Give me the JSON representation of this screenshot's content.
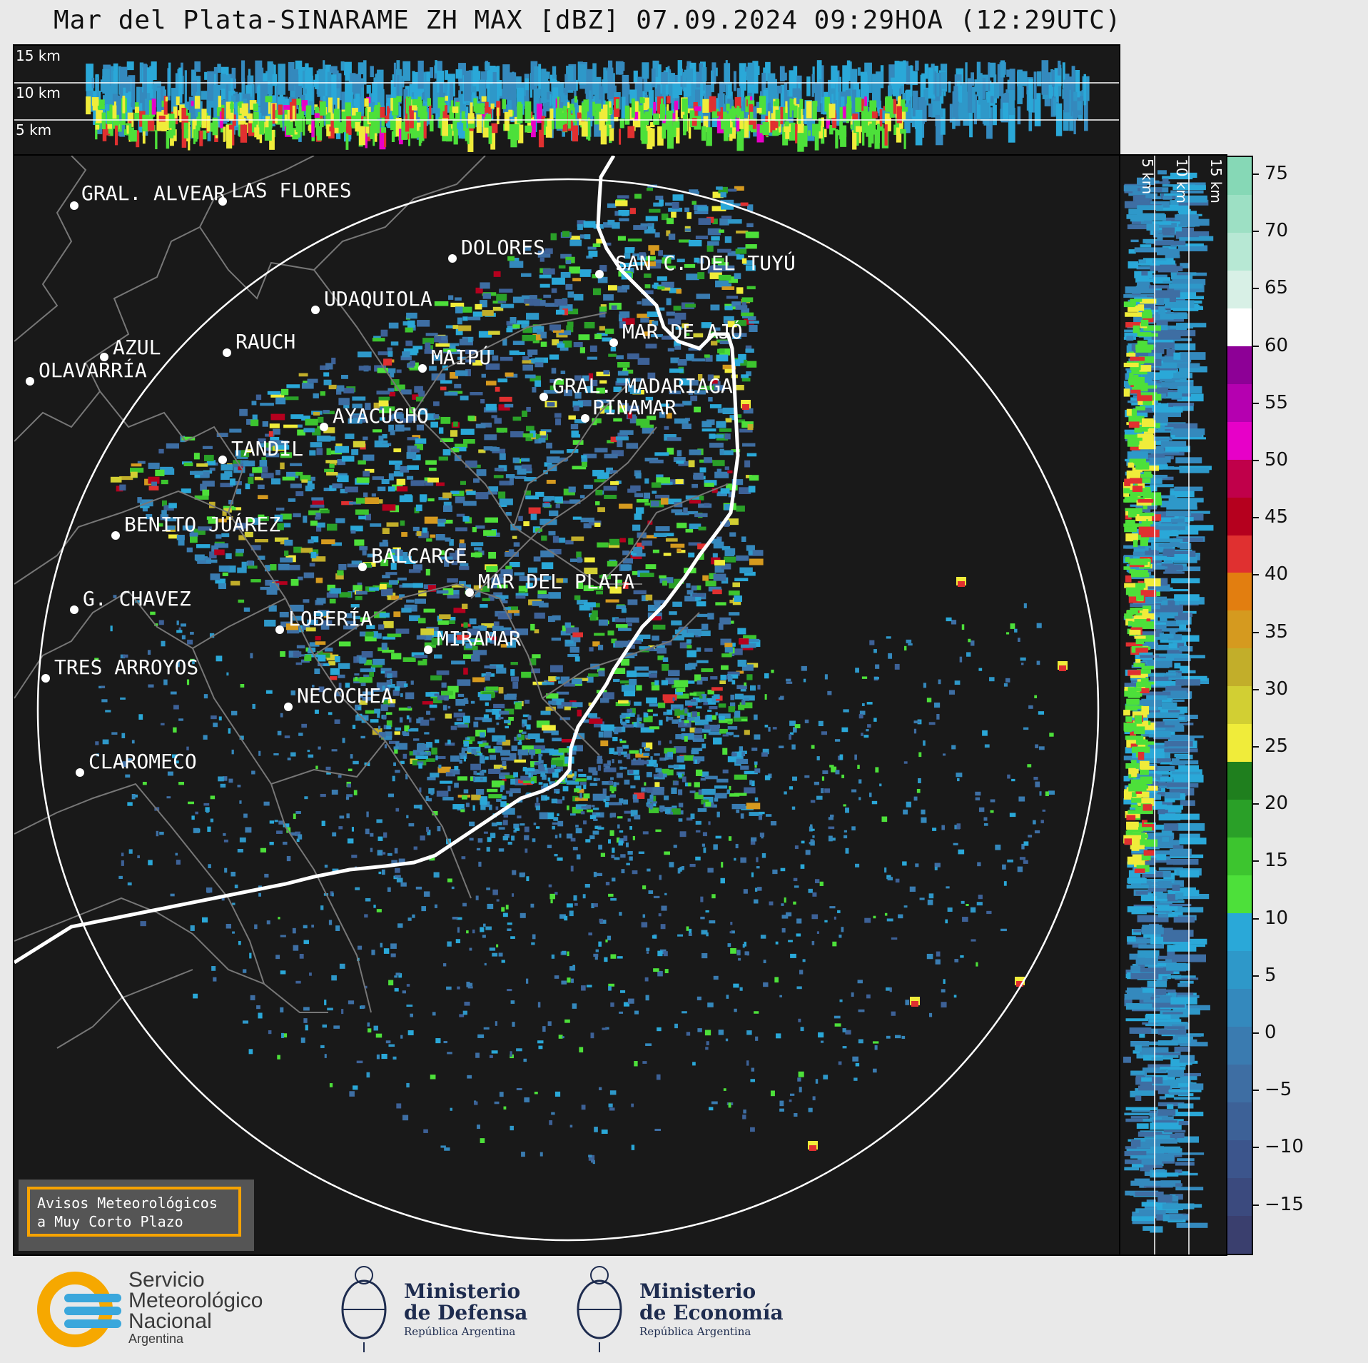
{
  "title": "Mar del Plata-SINARAME ZH MAX [dBZ] 07.09.2024 09:29HOA (12:29UTC)",
  "top_panel": {
    "labels": [
      "15 km",
      "10 km",
      "5 km"
    ]
  },
  "side_panel": {
    "labels": [
      "5 km",
      "10 km",
      "15 km"
    ]
  },
  "colorbar": {
    "ticks": [
      "75",
      "70",
      "65",
      "60",
      "55",
      "50",
      "45",
      "40",
      "35",
      "30",
      "25",
      "20",
      "15",
      "10",
      "5",
      "0",
      "−5",
      "−10",
      "−15"
    ],
    "colors": [
      "#3a3f6e",
      "#3b4a7e",
      "#3c558c",
      "#3d6197",
      "#3e6ea3",
      "#3a7bb0",
      "#3489bd",
      "#2e98c9",
      "#2aa8d8",
      "#4de03a",
      "#3dc52f",
      "#2aa028",
      "#1f7f1e",
      "#f0ec3a",
      "#d2cf33",
      "#c2ae2a",
      "#d59a1f",
      "#e27e10",
      "#e03030",
      "#b5001e",
      "#c0004a",
      "#e700c8",
      "#b500b0",
      "#8d0096",
      "#ffffff",
      "#d8f0e6",
      "#b7e8d4",
      "#9de0c4",
      "#86d8b6"
    ]
  },
  "cities": [
    {
      "name": "GRAL. ALVEAR"
    },
    {
      "name": "LAS FLORES"
    },
    {
      "name": "DOLORES"
    },
    {
      "name": "SAN C. DEL TUYÚ"
    },
    {
      "name": "UDAQUIOLA"
    },
    {
      "name": "MAR DE AJÓ"
    },
    {
      "name": "AZUL"
    },
    {
      "name": "RAUCH"
    },
    {
      "name": "MAIPÚ"
    },
    {
      "name": "OLAVARRÍA"
    },
    {
      "name": "GRAL. MADARIAGA"
    },
    {
      "name": "PINAMAR"
    },
    {
      "name": "AYACUCHO"
    },
    {
      "name": "TANDIL"
    },
    {
      "name": "BENITO JUÁREZ"
    },
    {
      "name": "BALCARCE"
    },
    {
      "name": "MAR DEL PLATA"
    },
    {
      "name": "G. CHAVEZ"
    },
    {
      "name": "LOBERÍA"
    },
    {
      "name": "MIRAMAR"
    },
    {
      "name": "TRES ARROYOS"
    },
    {
      "name": "NECOCHEA"
    },
    {
      "name": "CLAROMECO"
    }
  ],
  "avisos": {
    "line1": "Avisos Meteorológicos",
    "line2": "a Muy Corto Plazo"
  },
  "logos": {
    "smn": {
      "line1": "Servicio",
      "line2": "Meteorológico",
      "line3": "Nacional",
      "line4": "Argentina"
    },
    "defensa": {
      "line1": "Ministerio",
      "line2": "de Defensa",
      "line3": "República Argentina"
    },
    "economia": {
      "line1": "Ministerio",
      "line2": "de Economía",
      "line3": "República Argentina"
    }
  }
}
